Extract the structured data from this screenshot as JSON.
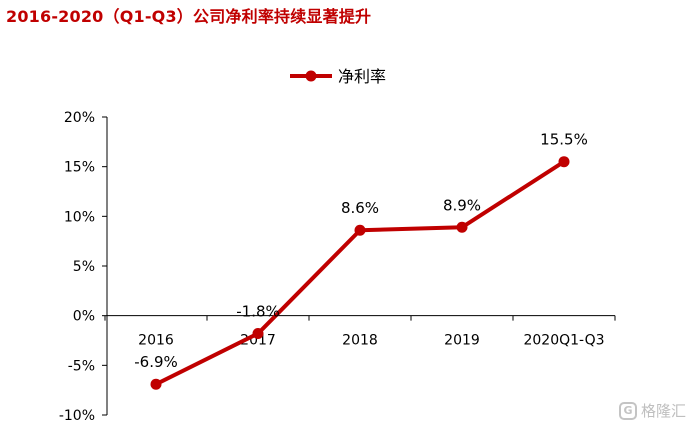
{
  "title": "2016-2020（Q1-Q3）公司净利率持续显著提升",
  "watermark": {
    "text": "格隆汇",
    "icon": "gelonghui-logo-icon"
  },
  "colors": {
    "series": "#c00000",
    "title": "#c00000",
    "axis": "#000000",
    "text": "#000000"
  },
  "chart_data": {
    "type": "line",
    "title": "2016-2020（Q1-Q3）公司净利率持续显著提升",
    "categories": [
      "2016",
      "2017",
      "2018",
      "2019",
      "2020Q1-Q3"
    ],
    "series": [
      {
        "name": "净利率",
        "values": [
          -6.9,
          -1.8,
          8.6,
          8.9,
          15.5
        ],
        "labels": [
          "-6.9%",
          "-1.8%",
          "8.6%",
          "8.9%",
          "15.5%"
        ]
      }
    ],
    "ylim": [
      -10,
      20
    ],
    "yticks": [
      20,
      15,
      10,
      5,
      0,
      -5,
      -10
    ],
    "ytick_labels": [
      "20%",
      "15%",
      "10%",
      "5%",
      "0%",
      "-5%",
      "-10%"
    ],
    "grid": false,
    "legend": "top-center",
    "markers": true
  }
}
